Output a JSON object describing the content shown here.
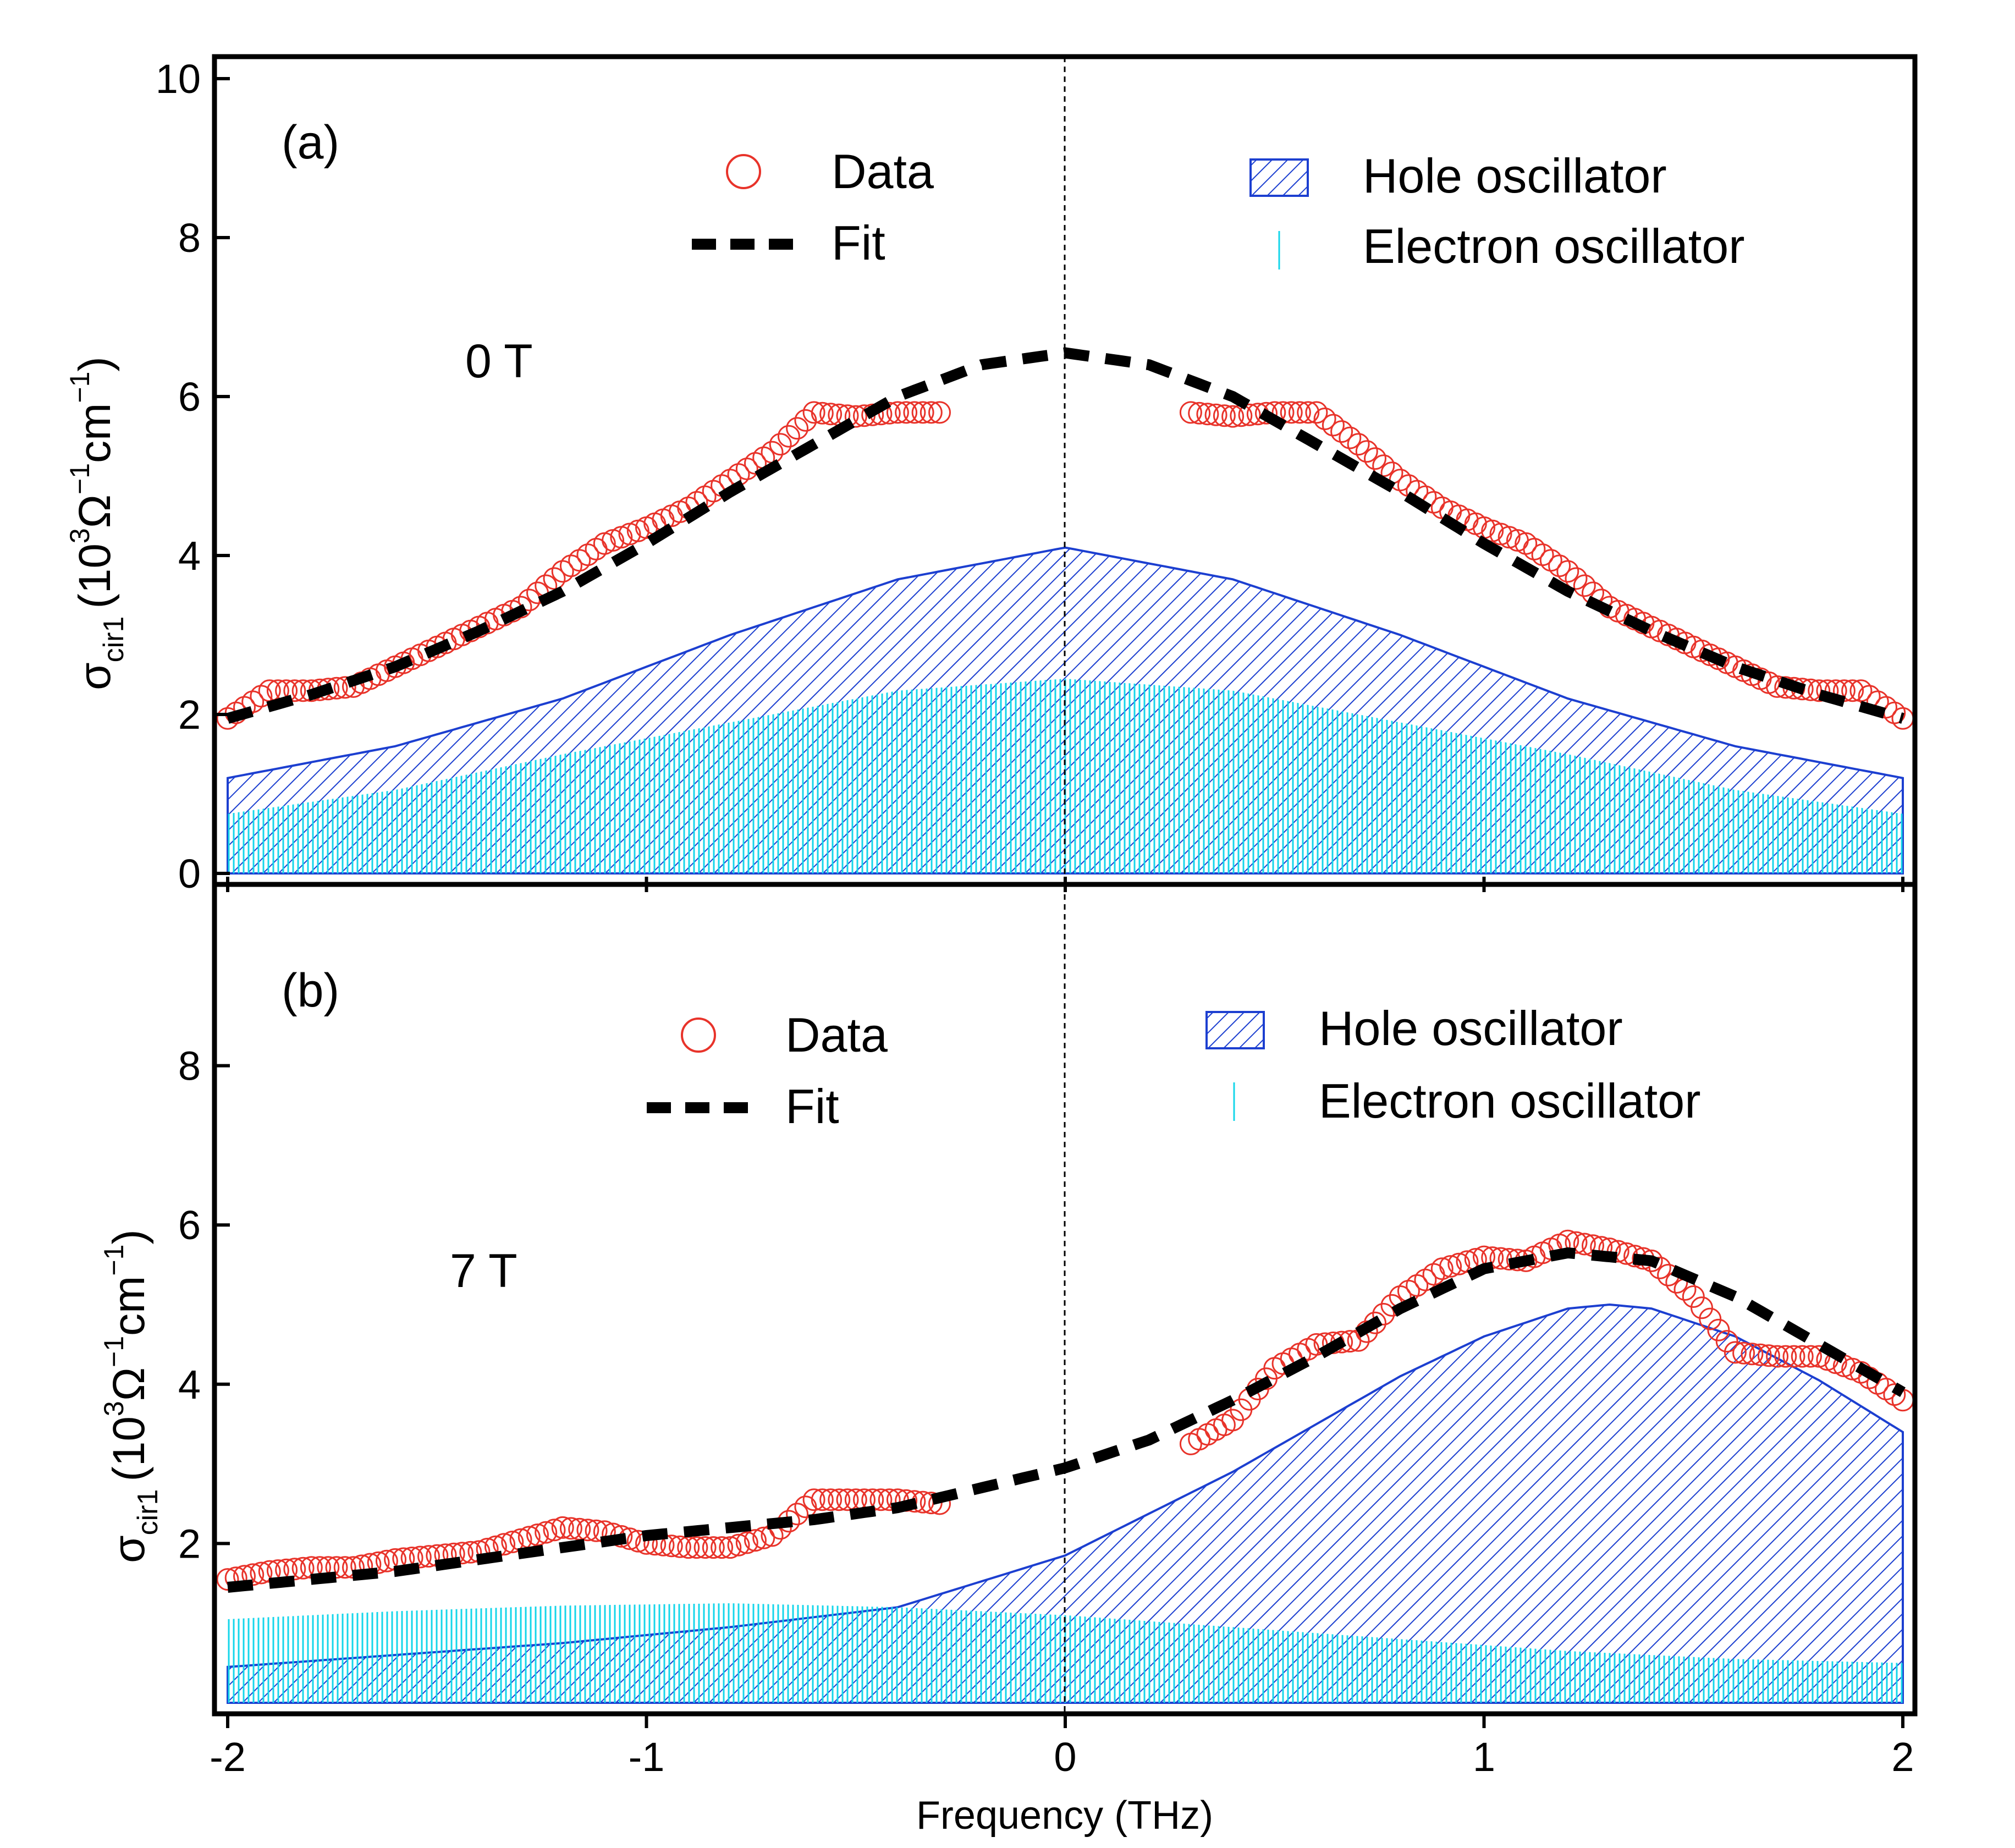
{
  "chart_data": [
    {
      "type": "line",
      "panel_label": "(a)",
      "field_label": "0 T",
      "ylabel": {
        "symbol": "σ",
        "subscript": "cir1",
        "text": "(10",
        "sup": "3",
        "omega": "Ω",
        "omega_sup": "−1",
        "cm": "cm",
        "cm_sup": "−1",
        "close": ")"
      },
      "xlim": [
        -2,
        2
      ],
      "ylim": [
        0,
        10
      ],
      "yticks": [
        0,
        2,
        4,
        6,
        8,
        10
      ],
      "ytick_labels": [
        "0",
        "2",
        "4",
        "6",
        "8",
        "10"
      ],
      "legend": {
        "data": "Data",
        "fit": "Fit",
        "hole": "Hole oscillator",
        "electron": "Electron oscillator"
      },
      "colors": {
        "data": "#e8332a",
        "fit": "#000000",
        "hole": "#1c3fd0",
        "electron": "#14d6ea"
      },
      "data_series": {
        "name": "Data",
        "x": [
          -2.0,
          -1.9,
          -1.8,
          -1.7,
          -1.6,
          -1.5,
          -1.4,
          -1.3,
          -1.2,
          -1.1,
          -1.0,
          -0.9,
          -0.8,
          -0.7,
          -0.6,
          -0.5,
          -0.4,
          -0.3,
          0.3,
          0.4,
          0.5,
          0.6,
          0.7,
          0.8,
          0.9,
          1.0,
          1.1,
          1.2,
          1.3,
          1.4,
          1.5,
          1.6,
          1.7,
          1.8,
          1.9,
          2.0
        ],
        "y": [
          1.95,
          2.3,
          2.3,
          2.35,
          2.6,
          2.85,
          3.1,
          3.35,
          3.8,
          4.15,
          4.35,
          4.6,
          4.95,
          5.3,
          5.8,
          5.75,
          5.8,
          5.8,
          5.8,
          5.75,
          5.8,
          5.8,
          5.4,
          4.95,
          4.6,
          4.35,
          4.15,
          3.8,
          3.35,
          3.1,
          2.85,
          2.6,
          2.35,
          2.3,
          2.3,
          1.95
        ]
      },
      "fit_series": {
        "name": "Fit",
        "x": [
          -2.0,
          -1.8,
          -1.6,
          -1.4,
          -1.2,
          -1.0,
          -0.8,
          -0.6,
          -0.4,
          -0.2,
          0.0,
          0.2,
          0.4,
          0.6,
          0.8,
          1.0,
          1.2,
          1.4,
          1.6,
          1.8,
          2.0
        ],
        "y": [
          1.95,
          2.25,
          2.6,
          3.05,
          3.55,
          4.15,
          4.8,
          5.4,
          6.0,
          6.4,
          6.55,
          6.4,
          6.0,
          5.4,
          4.8,
          4.15,
          3.55,
          3.05,
          2.6,
          2.25,
          1.95
        ]
      },
      "hole_oscillator": {
        "name": "Hole oscillator",
        "x": [
          -2.0,
          -1.6,
          -1.2,
          -0.8,
          -0.4,
          0.0,
          0.4,
          0.8,
          1.2,
          1.6,
          2.0
        ],
        "y": [
          1.2,
          1.6,
          2.2,
          3.0,
          3.7,
          4.1,
          3.7,
          3.0,
          2.2,
          1.6,
          1.2
        ]
      },
      "electron_oscillator": {
        "name": "Electron oscillator",
        "x": [
          -2.0,
          -1.6,
          -1.2,
          -0.8,
          -0.4,
          0.0,
          0.4,
          0.8,
          1.2,
          1.6,
          2.0
        ],
        "y": [
          0.75,
          1.05,
          1.5,
          1.9,
          2.3,
          2.45,
          2.3,
          1.9,
          1.5,
          1.05,
          0.75
        ]
      }
    },
    {
      "type": "line",
      "panel_label": "(b)",
      "field_label": "7 T",
      "ylabel": {
        "symbol": "σ",
        "subscript": "cir1",
        "text": "(10",
        "sup": "3",
        "omega": "Ω",
        "omega_sup": "−1",
        "cm": "cm",
        "cm_sup": "−1",
        "close": ")"
      },
      "xlim": [
        -2,
        2
      ],
      "ylim": [
        0,
        10
      ],
      "yticks": [
        2,
        4,
        6,
        8
      ],
      "ytick_labels": [
        "2",
        "4",
        "6",
        "8"
      ],
      "xticks": [
        -2,
        -1,
        0,
        1,
        2
      ],
      "xtick_labels": [
        "-2",
        "-1",
        "0",
        "1",
        "2"
      ],
      "xlabel": "Frequency (THz)",
      "legend": {
        "data": "Data",
        "fit": "Fit",
        "hole": "Hole oscillator",
        "electron": "Electron oscillator"
      },
      "colors": {
        "data": "#e8332a",
        "fit": "#000000",
        "hole": "#1c3fd0",
        "electron": "#14d6ea"
      },
      "data_series": {
        "name": "Data",
        "x": [
          -2.0,
          -1.9,
          -1.8,
          -1.7,
          -1.6,
          -1.5,
          -1.4,
          -1.3,
          -1.2,
          -1.1,
          -1.0,
          -0.9,
          -0.8,
          -0.7,
          -0.6,
          -0.5,
          -0.4,
          -0.3,
          0.3,
          0.4,
          0.5,
          0.6,
          0.7,
          0.8,
          0.9,
          1.0,
          1.1,
          1.2,
          1.3,
          1.4,
          1.5,
          1.6,
          1.7,
          1.8,
          1.9,
          2.0
        ],
        "y": [
          1.55,
          1.65,
          1.7,
          1.7,
          1.8,
          1.85,
          1.9,
          2.05,
          2.2,
          2.15,
          2.0,
          1.95,
          1.95,
          2.1,
          2.55,
          2.55,
          2.55,
          2.5,
          3.25,
          3.55,
          4.2,
          4.5,
          4.55,
          5.1,
          5.45,
          5.6,
          5.55,
          5.8,
          5.7,
          5.55,
          5.1,
          4.4,
          4.35,
          4.35,
          4.15,
          3.8
        ]
      },
      "fit_series": {
        "name": "Fit",
        "x": [
          -2.0,
          -1.8,
          -1.6,
          -1.4,
          -1.2,
          -1.0,
          -0.8,
          -0.6,
          -0.4,
          -0.2,
          0.0,
          0.2,
          0.4,
          0.6,
          0.8,
          1.0,
          1.2,
          1.4,
          1.6,
          1.8,
          2.0
        ],
        "y": [
          1.45,
          1.55,
          1.65,
          1.8,
          1.95,
          2.1,
          2.2,
          2.3,
          2.45,
          2.7,
          2.95,
          3.3,
          3.8,
          4.35,
          4.95,
          5.45,
          5.65,
          5.55,
          5.1,
          4.5,
          3.9
        ]
      },
      "hole_oscillator": {
        "name": "Hole oscillator",
        "x": [
          -2.0,
          -1.6,
          -1.2,
          -0.8,
          -0.4,
          0.0,
          0.4,
          0.8,
          1.0,
          1.2,
          1.3,
          1.4,
          1.6,
          1.8,
          2.0
        ],
        "y": [
          0.45,
          0.6,
          0.75,
          0.95,
          1.2,
          1.85,
          2.9,
          4.1,
          4.6,
          4.95,
          5.0,
          4.95,
          4.6,
          4.05,
          3.4
        ]
      },
      "electron_oscillator": {
        "name": "Electron oscillator",
        "x": [
          -2.0,
          -1.6,
          -1.2,
          -0.8,
          -0.4,
          0.0,
          0.4,
          0.8,
          1.2,
          1.6,
          2.0
        ],
        "y": [
          1.05,
          1.15,
          1.22,
          1.25,
          1.2,
          1.1,
          0.95,
          0.8,
          0.65,
          0.55,
          0.5
        ]
      }
    }
  ]
}
